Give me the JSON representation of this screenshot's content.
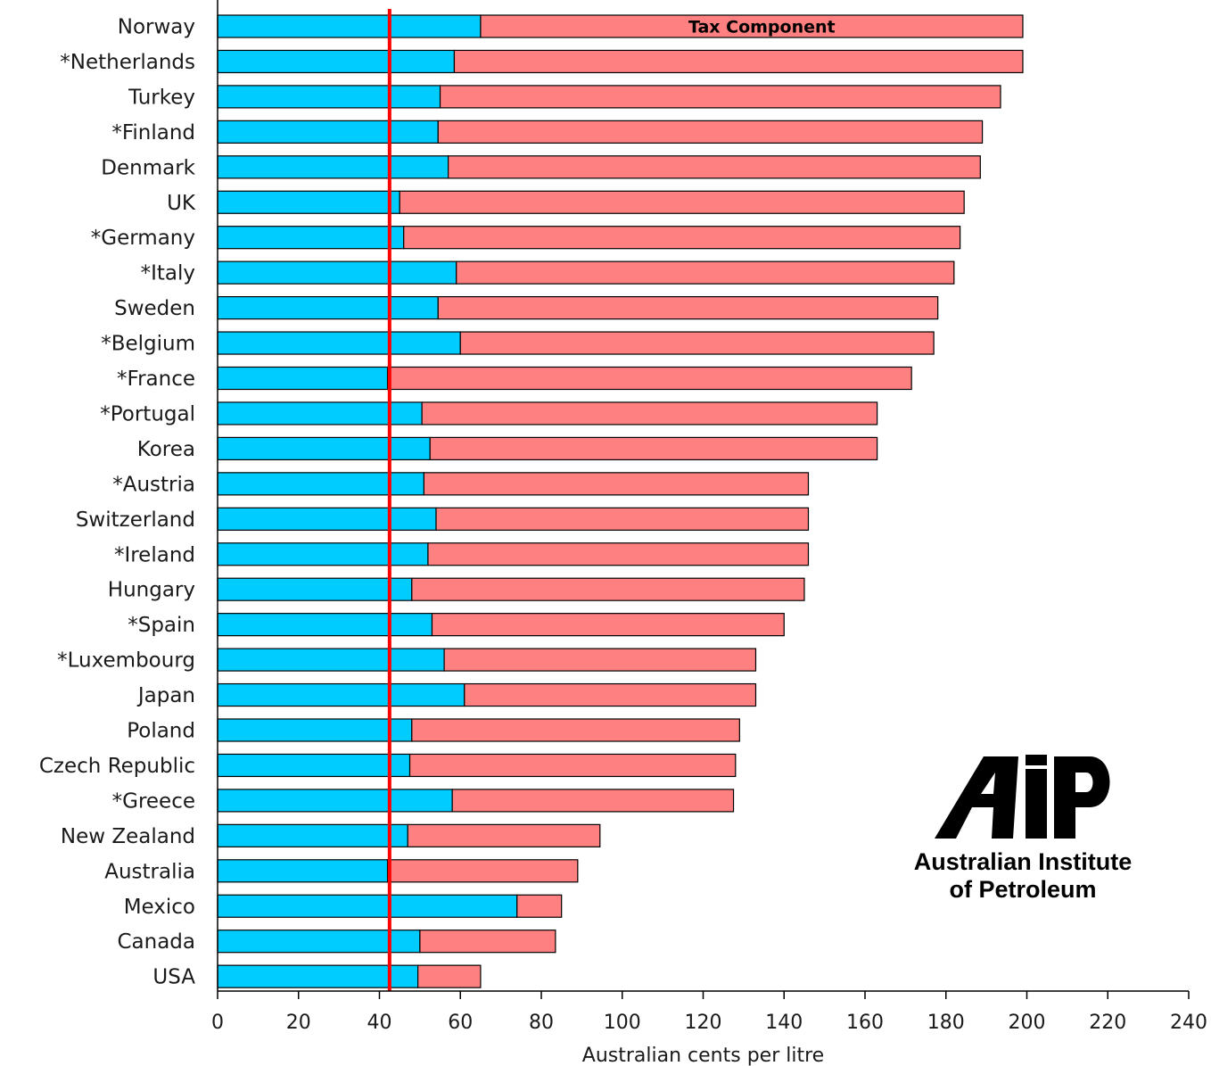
{
  "chart_data": {
    "type": "bar",
    "orientation": "horizontal",
    "stacked": true,
    "categories": [
      "Norway",
      "*Netherlands",
      "Turkey",
      "*Finland",
      "Denmark",
      "UK",
      "*Germany",
      "*Italy",
      "Sweden",
      "*Belgium",
      "*France",
      "*Portugal",
      "Korea",
      "*Austria",
      "Switzerland",
      "*Ireland",
      "Hungary",
      "*Spain",
      "*Luxembourg",
      "Japan",
      "Poland",
      "Czech Republic",
      "*Greece",
      "New Zealand",
      "Australia",
      "Mexico",
      "Canada",
      "USA"
    ],
    "series": [
      {
        "color": "#00ccff",
        "values": [
          65,
          58.5,
          55,
          54.5,
          57,
          45,
          46,
          59,
          54.5,
          60,
          42,
          50.5,
          52.5,
          51,
          54,
          52,
          48,
          53,
          56,
          61,
          48,
          47.5,
          58,
          47,
          42,
          74,
          50,
          49.5
        ]
      },
      {
        "name": "Tax Component",
        "color": "#ff8080",
        "values": [
          134,
          140.5,
          138.5,
          134.5,
          131.5,
          139.5,
          137.5,
          123,
          123.5,
          117,
          129.5,
          112.5,
          110.5,
          95,
          92,
          94,
          97,
          87,
          77,
          72,
          81,
          80.5,
          69.5,
          47.5,
          47,
          11,
          33.5,
          15.5
        ]
      }
    ],
    "reference_line": {
      "value": 42.5,
      "color": "#ff0000"
    },
    "xlabel": "Australian cents per litre",
    "xlim": [
      0,
      240
    ],
    "xticks": [
      0,
      20,
      40,
      60,
      80,
      100,
      120,
      140,
      160,
      180,
      200,
      220,
      240
    ],
    "annotation": "Tax Component",
    "grid": false
  },
  "logo": {
    "mark": "AIP",
    "line1": "Australian Institute",
    "line2": "of Petroleum"
  }
}
